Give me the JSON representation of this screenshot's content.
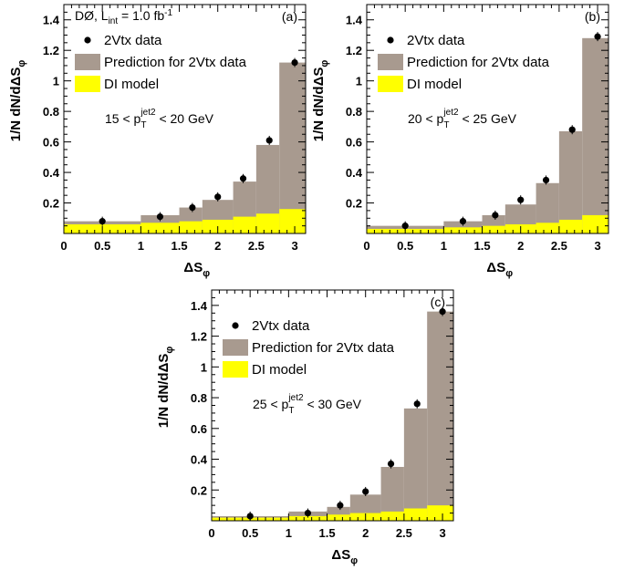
{
  "chart_data": [
    {
      "type": "bar",
      "panel_label": "(a)",
      "experiment_label": "DØ, L",
      "experiment_sub": "int",
      "experiment_value": " = 1.0 fb",
      "experiment_sup": "-1",
      "cut_label": {
        "pre": "15 < p",
        "sub": "T",
        "sup": "jet2",
        "post": " < 20 GeV"
      },
      "xlabel": {
        "main": "ΔS",
        "sub": "φ"
      },
      "ylabel": {
        "main": "1/N dN/dΔS",
        "sub": "φ"
      },
      "xlim": [
        0,
        3.1416
      ],
      "ylim": [
        0,
        1.5
      ],
      "x_ticks": [
        0,
        0.5,
        1,
        1.5,
        2,
        2.5,
        3
      ],
      "x_tick_labels": [
        "0",
        "0.5",
        "1",
        "1.5",
        "2",
        "2.5",
        "3"
      ],
      "y_ticks": [
        0.2,
        0.4,
        0.6,
        0.8,
        1,
        1.2,
        1.4
      ],
      "y_tick_labels": [
        "0.2",
        "0.4",
        "0.6",
        "0.8",
        "1",
        "1.2",
        "1.4"
      ],
      "bin_edges": [
        0,
        1.0,
        1.5,
        1.8,
        2.2,
        2.5,
        2.8,
        3.1416
      ],
      "series": [
        {
          "name": "Prediction for 2Vtx data",
          "kind": "hist",
          "color": "#a89a8f",
          "values": [
            0.08,
            0.12,
            0.17,
            0.22,
            0.34,
            0.58,
            1.12
          ]
        },
        {
          "name": "DI model",
          "kind": "hist",
          "color": "#ffff00",
          "values": [
            0.06,
            0.07,
            0.08,
            0.09,
            0.11,
            0.13,
            0.16
          ]
        },
        {
          "name": "2Vtx data",
          "kind": "points",
          "color": "#000000",
          "x": [
            0.5,
            1.25,
            1.67,
            2.0,
            2.33,
            2.67,
            3.0
          ],
          "values": [
            0.08,
            0.11,
            0.17,
            0.24,
            0.36,
            0.61,
            1.12
          ]
        }
      ],
      "legend": [
        "2Vtx data",
        "Prediction for 2Vtx data",
        "DI model"
      ]
    },
    {
      "type": "bar",
      "panel_label": "(b)",
      "cut_label": {
        "pre": "20 < p",
        "sub": "T",
        "sup": "jet2",
        "post": " < 25 GeV"
      },
      "xlabel": {
        "main": "ΔS",
        "sub": "φ"
      },
      "ylabel": {
        "main": "1/N dN/dΔS",
        "sub": "φ"
      },
      "xlim": [
        0,
        3.1416
      ],
      "ylim": [
        0,
        1.5
      ],
      "x_ticks": [
        0,
        0.5,
        1,
        1.5,
        2,
        2.5,
        3
      ],
      "x_tick_labels": [
        "0",
        "0.5",
        "1",
        "1.5",
        "2",
        "2.5",
        "3"
      ],
      "y_ticks": [
        0.2,
        0.4,
        0.6,
        0.8,
        1,
        1.2,
        1.4
      ],
      "y_tick_labels": [
        "0.2",
        "0.4",
        "0.6",
        "0.8",
        "1",
        "1.2",
        "1.4"
      ],
      "bin_edges": [
        0,
        1.0,
        1.5,
        1.8,
        2.2,
        2.5,
        2.8,
        3.1416
      ],
      "series": [
        {
          "name": "Prediction for 2Vtx data",
          "kind": "hist",
          "color": "#a89a8f",
          "values": [
            0.05,
            0.08,
            0.12,
            0.19,
            0.33,
            0.67,
            1.28
          ]
        },
        {
          "name": "DI model",
          "kind": "hist",
          "color": "#ffff00",
          "values": [
            0.03,
            0.04,
            0.05,
            0.06,
            0.07,
            0.09,
            0.12
          ]
        },
        {
          "name": "2Vtx data",
          "kind": "points",
          "color": "#000000",
          "x": [
            0.5,
            1.25,
            1.67,
            2.0,
            2.33,
            2.67,
            3.0
          ],
          "values": [
            0.05,
            0.08,
            0.12,
            0.22,
            0.35,
            0.68,
            1.29
          ]
        }
      ],
      "legend": [
        "2Vtx data",
        "Prediction for 2Vtx data",
        "DI model"
      ]
    },
    {
      "type": "bar",
      "panel_label": "(c)",
      "cut_label": {
        "pre": "25 < p",
        "sub": "T",
        "sup": "jet2",
        "post": " < 30 GeV"
      },
      "xlabel": {
        "main": "ΔS",
        "sub": "φ"
      },
      "ylabel": {
        "main": "1/N dN/dΔS",
        "sub": "φ"
      },
      "xlim": [
        0,
        3.1416
      ],
      "ylim": [
        0,
        1.5
      ],
      "x_ticks": [
        0,
        0.5,
        1,
        1.5,
        2,
        2.5,
        3
      ],
      "x_tick_labels": [
        "0",
        "0.5",
        "1",
        "1.5",
        "2",
        "2.5",
        "3"
      ],
      "y_ticks": [
        0.2,
        0.4,
        0.6,
        0.8,
        1,
        1.2,
        1.4
      ],
      "y_tick_labels": [
        "0.2",
        "0.4",
        "0.6",
        "0.8",
        "1",
        "1.2",
        "1.4"
      ],
      "bin_edges": [
        0,
        1.0,
        1.5,
        1.8,
        2.2,
        2.5,
        2.8,
        3.1416
      ],
      "series": [
        {
          "name": "Prediction for 2Vtx data",
          "kind": "hist",
          "color": "#a89a8f",
          "values": [
            0.03,
            0.06,
            0.09,
            0.17,
            0.35,
            0.73,
            1.36
          ]
        },
        {
          "name": "DI model",
          "kind": "hist",
          "color": "#ffff00",
          "values": [
            0.02,
            0.03,
            0.04,
            0.05,
            0.06,
            0.08,
            0.1
          ]
        },
        {
          "name": "2Vtx data",
          "kind": "points",
          "color": "#000000",
          "x": [
            0.5,
            1.25,
            1.67,
            2.0,
            2.33,
            2.67,
            3.0
          ],
          "values": [
            0.03,
            0.05,
            0.1,
            0.19,
            0.37,
            0.76,
            1.36
          ]
        }
      ],
      "legend": [
        "2Vtx data",
        "Prediction for 2Vtx data",
        "DI model"
      ]
    }
  ]
}
